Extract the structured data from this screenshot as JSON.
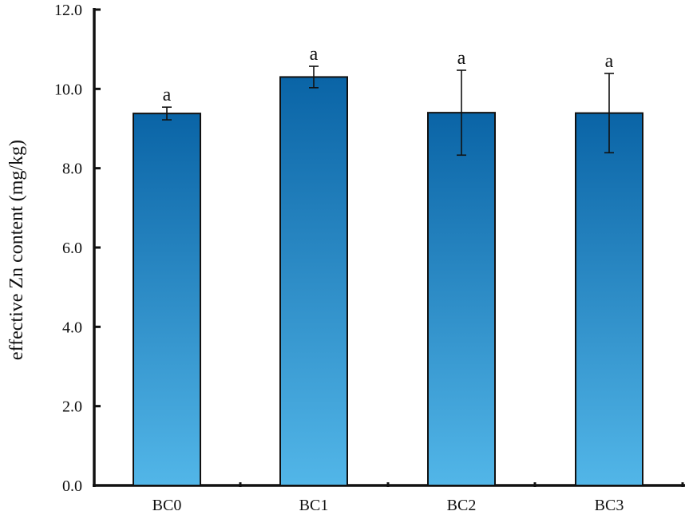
{
  "chart_data": {
    "type": "bar",
    "categories": [
      "BC0",
      "BC1",
      "BC2",
      "BC3"
    ],
    "values": [
      9.38,
      10.3,
      9.4,
      9.39
    ],
    "errors": [
      0.16,
      0.27,
      1.07,
      1.0
    ],
    "significance": [
      "a",
      "a",
      "a",
      "a"
    ],
    "ylabel": "effective Zn content (mg/kg)",
    "xlabel": "",
    "ylim": [
      0,
      12
    ],
    "yticks": [
      0,
      2,
      4,
      6,
      8,
      10,
      12
    ],
    "ytick_labels": [
      "0.0",
      "2.0",
      "4.0",
      "6.0",
      "8.0",
      "10.0",
      "12.0"
    ],
    "grid": false,
    "legend": "none",
    "colors": {
      "bar_top": "#0a64a6",
      "bar_bottom": "#52b6e8",
      "bar_edge": "#111111",
      "axis": "#111111",
      "error_bar": "#111111"
    }
  }
}
